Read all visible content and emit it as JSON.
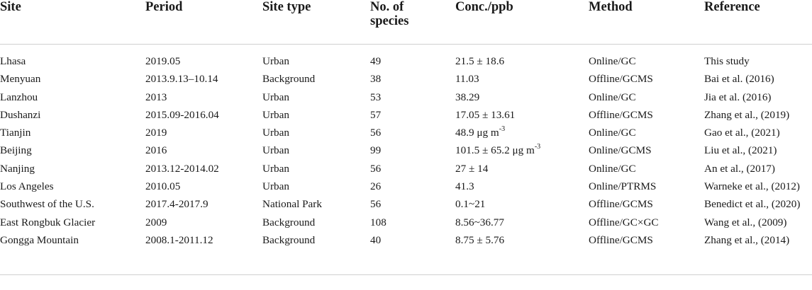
{
  "headers": [
    "Site",
    "Period",
    "Site type",
    "No. of\nspecies",
    "Conc./ppb",
    "Method",
    "Reference"
  ],
  "rows": [
    {
      "site": "Lhasa",
      "period": "2019.05",
      "type": "Urban",
      "species": "49",
      "conc": "21.5 ± 18.6",
      "conc_unit": "",
      "conc_sup": "",
      "method": "Online/GC",
      "ref": "This study"
    },
    {
      "site": "Menyuan",
      "period": "2013.9.13–10.14",
      "type": "Background",
      "species": "38",
      "conc": "11.03",
      "conc_unit": "",
      "conc_sup": "",
      "method": "Offline/GCMS",
      "ref": "Bai et al. (2016)"
    },
    {
      "site": "Lanzhou",
      "period": "2013",
      "type": "Urban",
      "species": "53",
      "conc": "38.29",
      "conc_unit": "",
      "conc_sup": "",
      "method": "Online/GC",
      "ref": "Jia et al. (2016)"
    },
    {
      "site": "Dushanzi",
      "period": "2015.09-2016.04",
      "type": "Urban",
      "species": "57",
      "conc": "17.05 ± 13.61",
      "conc_unit": "",
      "conc_sup": "",
      "method": "Offline/GCMS",
      "ref": "Zhang et al., (2019)"
    },
    {
      "site": "Tianjin",
      "period": "2019",
      "type": "Urban",
      "species": "56",
      "conc": "48.9",
      "conc_unit": "μg m",
      "conc_sup": "-3",
      "method": "Online/GC",
      "ref": "Gao et al., (2021)"
    },
    {
      "site": "Beijing",
      "period": "2016",
      "type": "Urban",
      "species": "99",
      "conc": "101.5 ± 65.2",
      "conc_unit": "μg m",
      "conc_sup": "-3",
      "method": "Online/GCMS",
      "ref": "Liu et al., (2021)"
    },
    {
      "site": "Nanjing",
      "period": "2013.12-2014.02",
      "type": "Urban",
      "species": "56",
      "conc": "27 ± 14",
      "conc_unit": "",
      "conc_sup": "",
      "method": "Online/GC",
      "ref": "An et al., (2017)"
    },
    {
      "site": "Los Angeles",
      "period": "2010.05",
      "type": "Urban",
      "species": "26",
      "conc": "41.3",
      "conc_unit": "",
      "conc_sup": "",
      "method": "Online/PTRMS",
      "ref": "Warneke et al., (2012)"
    },
    {
      "site": "Southwest of the U.S.",
      "period": "2017.4-2017.9",
      "type": "National Park",
      "species": "56",
      "conc": "0.1~21",
      "conc_unit": "",
      "conc_sup": "",
      "method": "Offline/GCMS",
      "ref": "Benedict et al., (2020)"
    },
    {
      "site": "East Rongbuk Glacier",
      "period": "2009",
      "type": "Background",
      "species": "108",
      "conc": "8.56~36.77",
      "conc_unit": "",
      "conc_sup": "",
      "method": "Offline/GC×GC",
      "ref": "Wang et al., (2009)"
    },
    {
      "site": "Gongga Mountain",
      "period": "2008.1-2011.12",
      "type": "Background",
      "species": "40",
      "conc": "8.75 ± 5.76",
      "conc_unit": "",
      "conc_sup": "",
      "method": "Offline/GCMS",
      "ref": "Zhang et al., (2014)"
    }
  ]
}
